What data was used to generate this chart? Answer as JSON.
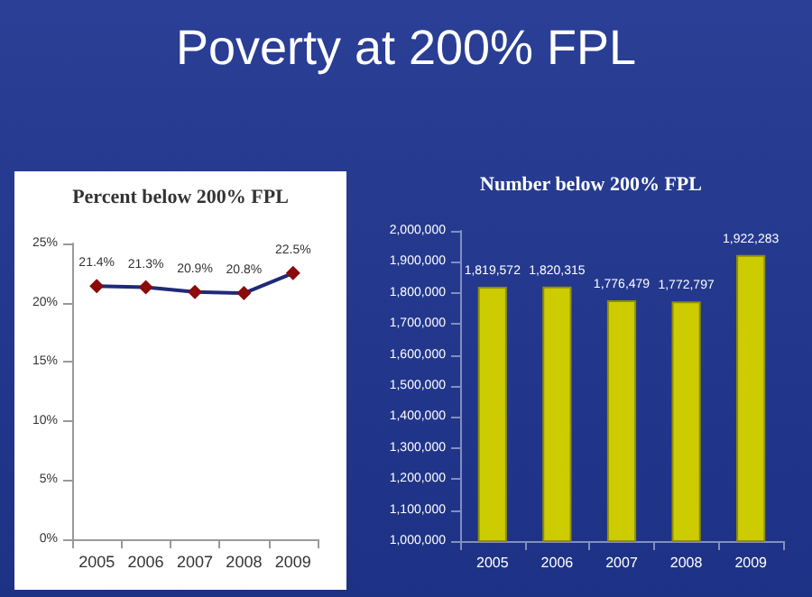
{
  "chart_data": [
    {
      "type": "other",
      "title": "Poverty at 200% FPL"
    },
    {
      "type": "line",
      "title": "Percent below 200% FPL",
      "categories": [
        "2005",
        "2006",
        "2007",
        "2008",
        "2009"
      ],
      "series": [
        {
          "color": "#1f2a78",
          "values": [
            21.4,
            21.3,
            20.9,
            20.8,
            22.5
          ],
          "value_labels": [
            "21.4%",
            "21.3%",
            "20.9%",
            "20.8%",
            "22.5%"
          ]
        }
      ],
      "ylim": [
        0,
        25
      ],
      "yticks": [
        {
          "value": 0,
          "label": "0%"
        },
        {
          "value": 5,
          "label": "5%"
        },
        {
          "value": 10,
          "label": "10%"
        },
        {
          "value": 15,
          "label": "15%"
        },
        {
          "value": 20,
          "label": "20%"
        },
        {
          "value": 25,
          "label": "25%"
        }
      ],
      "marker": "diamond",
      "grid": false
    },
    {
      "type": "bar",
      "title": "Number below 200% FPL",
      "categories": [
        "2005",
        "2006",
        "2007",
        "2008",
        "2009"
      ],
      "series": [
        {
          "color": "#cccc00",
          "values": [
            1819572,
            1820315,
            1776479,
            1772797,
            1922283
          ],
          "value_labels": [
            "1,819,572",
            "1,820,315",
            "1,776,479",
            "1,772,797",
            "1,922,283"
          ]
        }
      ],
      "ylim": [
        1000000,
        2000000
      ],
      "yticks": [
        {
          "value": 1000000,
          "label": "1,000,000"
        },
        {
          "value": 1100000,
          "label": "1,100,000"
        },
        {
          "value": 1200000,
          "label": "1,200,000"
        },
        {
          "value": 1300000,
          "label": "1,300,000"
        },
        {
          "value": 1400000,
          "label": "1,400,000"
        },
        {
          "value": 1500000,
          "label": "1,500,000"
        },
        {
          "value": 1600000,
          "label": "1,600,000"
        },
        {
          "value": 1700000,
          "label": "1,700,000"
        },
        {
          "value": 1800000,
          "label": "1,800,000"
        },
        {
          "value": 1900000,
          "label": "1,900,000"
        },
        {
          "value": 2000000,
          "label": "2,000,000"
        }
      ],
      "grid": false
    }
  ]
}
